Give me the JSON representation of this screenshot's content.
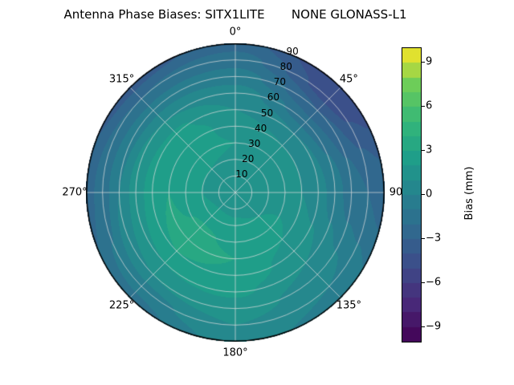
{
  "title": "Antenna Phase Biases: SITX1LITE       NONE GLONASS-L1",
  "colorbar": {
    "label": "Bias (mm)",
    "vmin": -10,
    "vmax": 10,
    "ticks": [
      {
        "value": 9,
        "label": "9"
      },
      {
        "value": 6,
        "label": "6"
      },
      {
        "value": 3,
        "label": "3"
      },
      {
        "value": 0,
        "label": "0"
      },
      {
        "value": -3,
        "label": "−3"
      },
      {
        "value": -6,
        "label": "−6"
      },
      {
        "value": -9,
        "label": "−9"
      }
    ]
  },
  "polar_axes": {
    "radial_label_azimuth_deg": 22.5,
    "angular_labels": [
      {
        "angle_deg": 0,
        "label": "0°"
      },
      {
        "angle_deg": 45,
        "label": "45°"
      },
      {
        "angle_deg": 90,
        "label": "90"
      },
      {
        "angle_deg": 135,
        "label": "135°"
      },
      {
        "angle_deg": 180,
        "label": "180°"
      },
      {
        "angle_deg": 225,
        "label": "225°"
      },
      {
        "angle_deg": 270,
        "label": "270°"
      },
      {
        "angle_deg": 315,
        "label": "315°"
      }
    ],
    "radial_labels": [
      {
        "zenith_deg": 10,
        "label": "10"
      },
      {
        "zenith_deg": 20,
        "label": "20"
      },
      {
        "zenith_deg": 30,
        "label": "30"
      },
      {
        "zenith_deg": 40,
        "label": "40"
      },
      {
        "zenith_deg": 50,
        "label": "50"
      },
      {
        "zenith_deg": 60,
        "label": "60"
      },
      {
        "zenith_deg": 70,
        "label": "70"
      },
      {
        "zenith_deg": 80,
        "label": "80"
      },
      {
        "zenith_deg": 90,
        "label": "90"
      }
    ]
  },
  "chart_data": {
    "type": "heatmap",
    "projection": "polar",
    "title": "Antenna Phase Biases: SITX1LITE       NONE GLONASS-L1",
    "colorbar_label": "Bias (mm)",
    "colormap": "viridis",
    "vmin": -10,
    "vmax": 10,
    "level_step_mm": 1,
    "angular_grid_step_deg": 45,
    "radial_grid_step_deg": 10,
    "azimuth_deg": [
      0,
      45,
      90,
      135,
      180,
      225,
      270,
      315,
      360
    ],
    "zenith_deg": [
      0,
      10,
      20,
      30,
      40,
      50,
      60,
      70,
      80,
      90
    ],
    "values_mm": [
      [
        1.5,
        1.5,
        1.8,
        2.0,
        1.5,
        1.0,
        0.5,
        -0.5,
        -1.5,
        -2.5
      ],
      [
        1.5,
        1.3,
        1.5,
        1.5,
        1.0,
        0.0,
        -1.5,
        -3.0,
        -4.5,
        -5.0
      ],
      [
        1.5,
        1.5,
        1.8,
        1.5,
        1.0,
        0.5,
        -0.5,
        -1.5,
        -2.0,
        -2.5
      ],
      [
        1.5,
        1.6,
        2.0,
        2.2,
        2.0,
        1.5,
        1.0,
        0.5,
        0.0,
        -0.5
      ],
      [
        1.5,
        1.8,
        2.2,
        2.8,
        3.0,
        2.8,
        2.2,
        1.5,
        1.0,
        0.5
      ],
      [
        1.5,
        1.8,
        2.5,
        3.2,
        3.5,
        3.0,
        2.0,
        1.0,
        -0.5,
        -1.5
      ],
      [
        1.5,
        1.6,
        2.0,
        2.5,
        3.0,
        2.5,
        1.5,
        0.0,
        -1.5,
        -2.5
      ],
      [
        1.5,
        1.5,
        2.0,
        2.5,
        2.8,
        2.2,
        1.0,
        -0.5,
        -2.0,
        -3.5
      ],
      [
        1.5,
        1.5,
        1.8,
        2.0,
        1.5,
        1.0,
        0.5,
        -0.5,
        -1.5,
        -2.5
      ]
    ]
  }
}
